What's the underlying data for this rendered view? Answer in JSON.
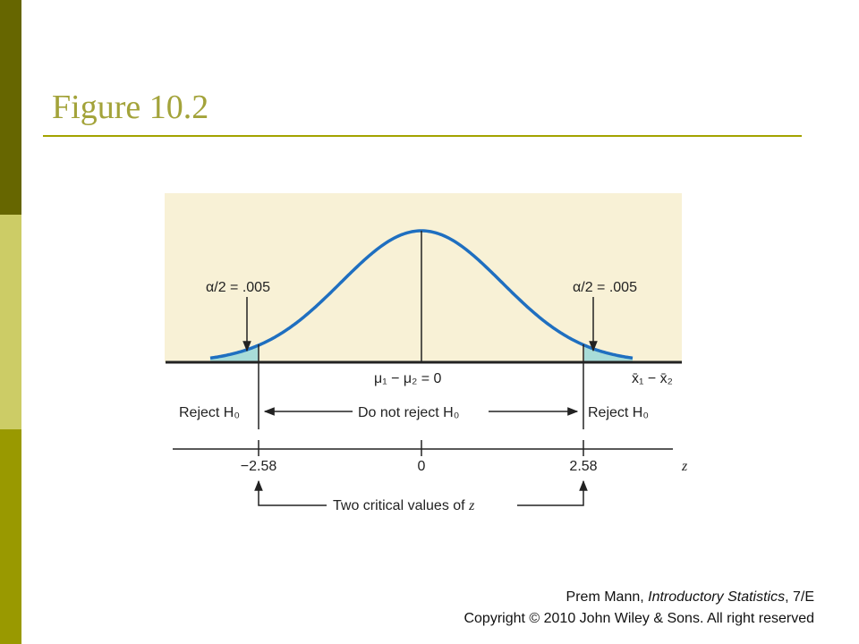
{
  "header": {
    "title": "Figure 10.2"
  },
  "figure": {
    "alpha_left": "α/2 = .005",
    "alpha_right": "α/2 = .005",
    "mean_label": "μ₁ − μ₂ = 0",
    "xbar_label": "x̄₁ − x̄₂",
    "reject_left": "Reject H₀",
    "do_not_reject": "Do not reject H₀",
    "reject_right": "Reject H₀",
    "z_left": "−2.58",
    "z_center": "0",
    "z_right": "2.58",
    "z_axis": "z",
    "critical_caption": {
      "text": "Two critical values of ",
      "var": "z"
    }
  },
  "footer": {
    "line1": {
      "author": "Prem Mann, ",
      "book": "Introductory Statistics",
      "edition": ", 7/E"
    },
    "line2": "Copyright © 2010 John Wiley & Sons. All right reserved"
  }
}
